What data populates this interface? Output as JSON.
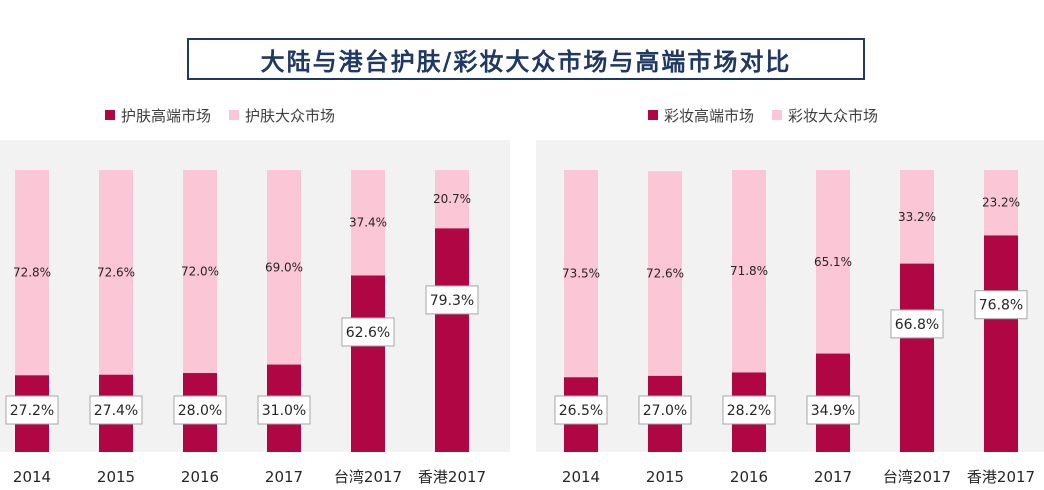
{
  "title": "大陆与港台护肤/彩妆大众市场与高端市场对比",
  "colors": {
    "high": "#b00644",
    "mass": "#fbc6d6",
    "bg": "#f2f2f2"
  },
  "chart_data": [
    {
      "type": "bar",
      "stacked": true,
      "percent_stacked": true,
      "legend_position": "top-left",
      "categories": [
        "2014",
        "2015",
        "2016",
        "2017",
        "台湾2017",
        "香港2017"
      ],
      "series": [
        {
          "name": "护肤高端市场",
          "values": [
            27.2,
            27.4,
            28.0,
            31.0,
            62.6,
            79.3
          ],
          "labels": [
            "27.2%",
            "27.4%",
            "28.0%",
            "31.0%",
            "62.6%",
            "79.3%"
          ]
        },
        {
          "name": "护肤大众市场",
          "values": [
            72.8,
            72.6,
            72.0,
            69.0,
            37.4,
            20.7
          ],
          "labels": [
            "72.8%",
            "72.6%",
            "72.0%",
            "69.0%",
            "37.4%",
            "20.7%"
          ]
        }
      ],
      "ylim": [
        0,
        100
      ],
      "grid": false
    },
    {
      "type": "bar",
      "stacked": true,
      "percent_stacked": true,
      "legend_position": "top-left",
      "categories": [
        "2014",
        "2015",
        "2016",
        "2017",
        "台湾2017",
        "香港2017"
      ],
      "series": [
        {
          "name": "彩妆高端市场",
          "values": [
            26.5,
            27.0,
            28.2,
            34.9,
            66.8,
            76.8
          ],
          "labels": [
            "26.5%",
            "27.0%",
            "28.2%",
            "34.9%",
            "66.8%",
            "76.8%"
          ]
        },
        {
          "name": "彩妆大众市场",
          "values": [
            73.5,
            72.6,
            71.8,
            65.1,
            33.2,
            23.2
          ],
          "labels": [
            "73.5%",
            "72.6%",
            "71.8%",
            "65.1%",
            "33.2%",
            "23.2%"
          ]
        }
      ],
      "ylim": [
        0,
        100
      ],
      "grid": false
    }
  ]
}
